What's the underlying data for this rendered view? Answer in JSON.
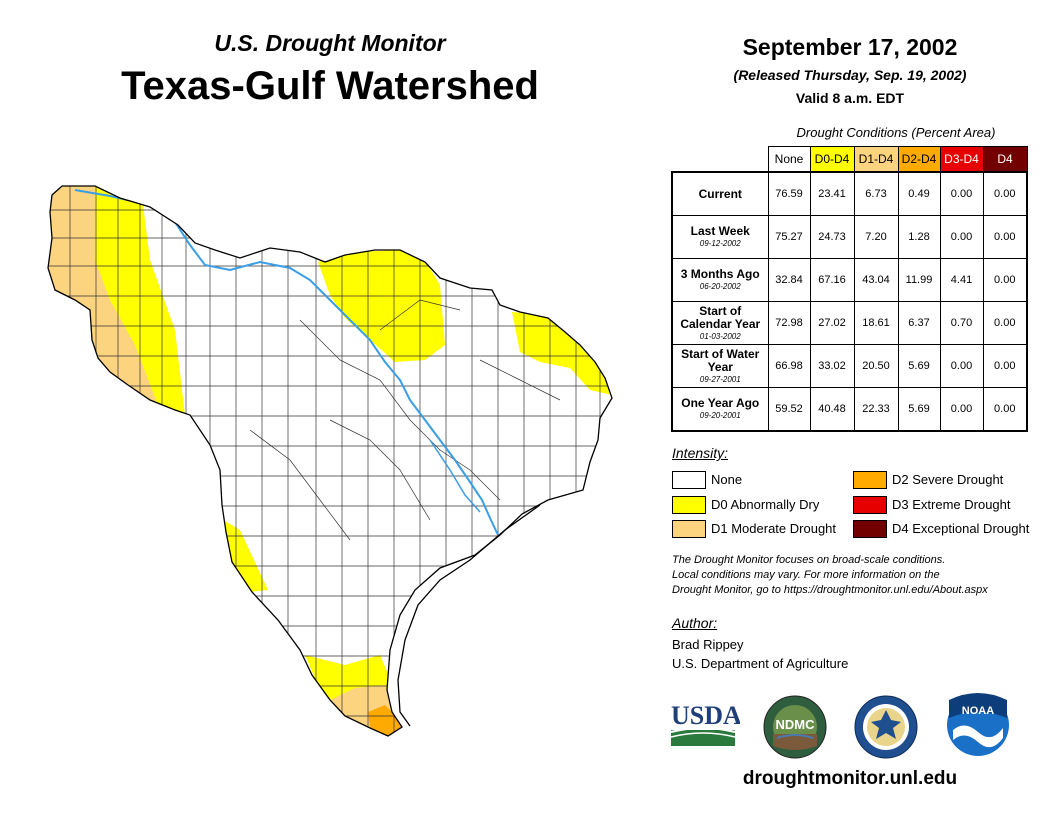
{
  "header": {
    "subtitle": "U.S. Drought Monitor",
    "title": "Texas-Gulf Watershed",
    "date": "September 17, 2002",
    "released": "(Released Thursday, Sep. 19, 2002)",
    "valid": "Valid 8 a.m. EDT"
  },
  "table": {
    "caption": "Drought Conditions (Percent Area)",
    "columns": [
      "None",
      "D0-D4",
      "D1-D4",
      "D2-D4",
      "D3-D4",
      "D4"
    ],
    "rows": [
      {
        "label": "Current",
        "date": "",
        "values": [
          "76.59",
          "23.41",
          "6.73",
          "0.49",
          "0.00",
          "0.00"
        ]
      },
      {
        "label": "Last Week",
        "date": "09-12-2002",
        "values": [
          "75.27",
          "24.73",
          "7.20",
          "1.28",
          "0.00",
          "0.00"
        ]
      },
      {
        "label": "3 Months Ago",
        "date": "06-20-2002",
        "values": [
          "32.84",
          "67.16",
          "43.04",
          "11.99",
          "4.41",
          "0.00"
        ]
      },
      {
        "label": "Start of Calendar Year",
        "date": "01-03-2002",
        "values": [
          "72.98",
          "27.02",
          "18.61",
          "6.37",
          "0.70",
          "0.00"
        ]
      },
      {
        "label": "Start of Water Year",
        "date": "09-27-2001",
        "values": [
          "66.98",
          "33.02",
          "20.50",
          "5.69",
          "0.00",
          "0.00"
        ]
      },
      {
        "label": "One Year Ago",
        "date": "09-20-2001",
        "values": [
          "59.52",
          "40.48",
          "22.33",
          "5.69",
          "0.00",
          "0.00"
        ]
      }
    ]
  },
  "legend": {
    "heading": "Intensity:",
    "items": [
      {
        "label": "None",
        "color": "#ffffff"
      },
      {
        "label": "D0 Abnormally Dry",
        "color": "#ffff00"
      },
      {
        "label": "D1 Moderate Drought",
        "color": "#fcd37f"
      },
      {
        "label": "D2 Severe Drought",
        "color": "#ffaa00"
      },
      {
        "label": "D3 Extreme Drought",
        "color": "#e60000"
      },
      {
        "label": "D4 Exceptional Drought",
        "color": "#730000"
      }
    ]
  },
  "note": {
    "line1": "The Drought Monitor focuses on broad-scale conditions.",
    "line2": "Local conditions may vary. For more information on the",
    "line3": "Drought Monitor, go to https://droughtmonitor.unl.edu/About.aspx"
  },
  "author": {
    "heading": "Author:",
    "name": "Brad Rippey",
    "org": "U.S. Department of Agriculture"
  },
  "logos": {
    "usda": "USDA",
    "ndmc": "NDMC",
    "noaa": "NOAA"
  },
  "url": "droughtmonitor.unl.edu",
  "colors": {
    "none": "#ffffff",
    "d0": "#ffff00",
    "d1": "#fcd37f",
    "d2": "#ffaa00",
    "d3": "#e60000",
    "d4": "#730000",
    "river": "#3a9ee6"
  }
}
